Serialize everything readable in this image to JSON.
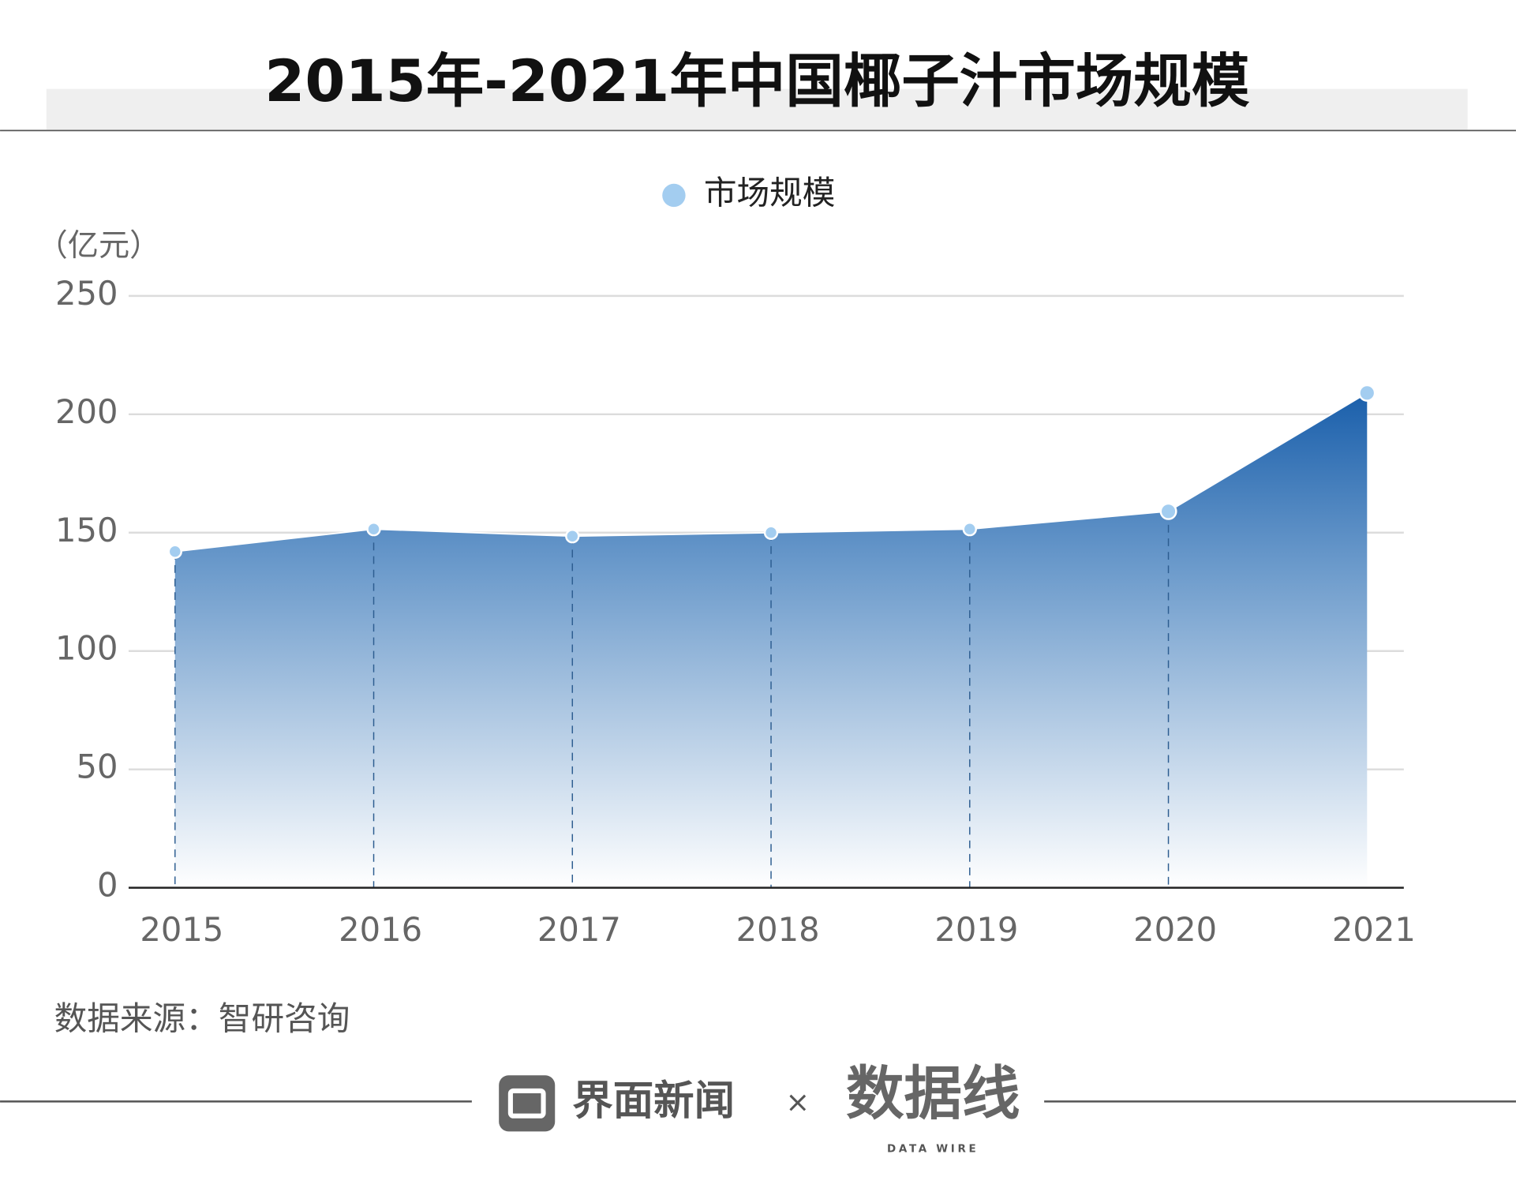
{
  "chart_data": {
    "type": "area",
    "title": "2015年-2021年中国椰子汁市场规模",
    "y_unit_label": "（亿元）",
    "categories": [
      "2015",
      "2016",
      "2017",
      "2018",
      "2019",
      "2020",
      "2021"
    ],
    "series": [
      {
        "name": "市场规模",
        "color": "#a3cdf0",
        "values": [
          142,
          151.5,
          148.5,
          150,
          151.5,
          159,
          209
        ]
      }
    ],
    "ylim": [
      0,
      250
    ],
    "yticks": [
      0,
      50,
      100,
      150,
      200,
      250
    ],
    "grid": true,
    "source": "数据来源：智研咨询"
  },
  "footer": {
    "left_brand": "界面新闻",
    "separator": "×",
    "right_brand": "数据线",
    "right_brand_sub": "DATA WIRE"
  }
}
